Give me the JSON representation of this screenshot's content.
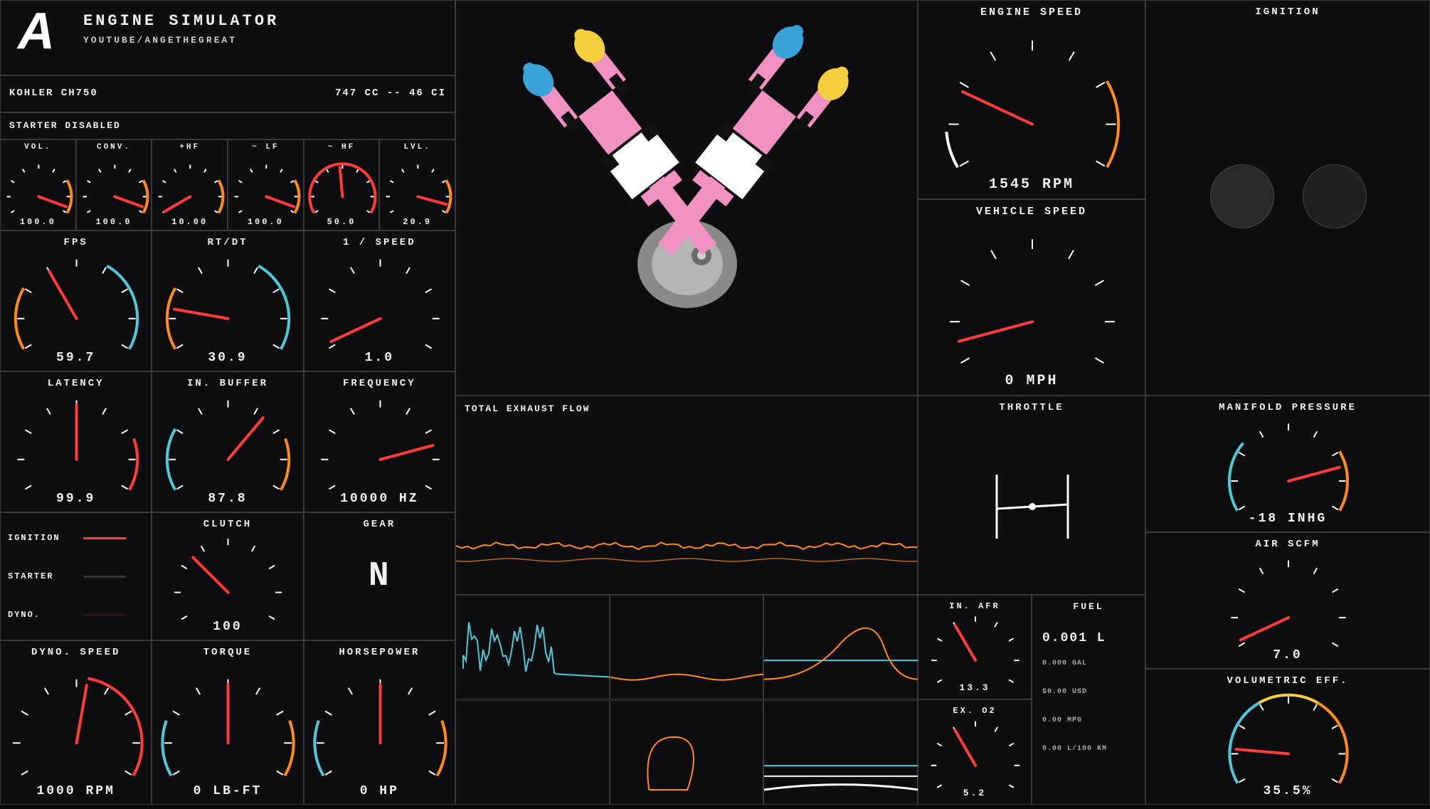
{
  "colors": {
    "bg": "#0e0e10",
    "border": "#3a3a3a",
    "text": "#f0f0f0",
    "needle": "#ff3b3b",
    "tick": "#ffffff",
    "orange": "#ff8c1a",
    "cyan": "#4fc8d8",
    "yellow": "#f4d03f",
    "pink": "#f191c1",
    "blue": "#3aa3d8",
    "grey": "#9a9a9a"
  },
  "header": {
    "logo": "A",
    "title": "ENGINE SIMULATOR",
    "subtitle": "YOUTUBE/ANGETHEGREAT"
  },
  "engine_info": {
    "name": "KOHLER CH750",
    "displacement": "747 CC -- 46 CI"
  },
  "starter_status": "STARTER DISABLED",
  "mini_gauges": [
    {
      "label": "VOL.",
      "value": "100.0",
      "angle": 200,
      "accent_start": 150,
      "accent_end": 210,
      "accent_color": "#ff8c1a"
    },
    {
      "label": "CONV.",
      "value": "100.0",
      "angle": 200,
      "accent_start": 150,
      "accent_end": 210,
      "accent_color": "#ff8c1a"
    },
    {
      "label": "+HF",
      "value": "10.00",
      "angle": -30,
      "accent_start": 150,
      "accent_end": 210,
      "accent_color": "#ff8c1a"
    },
    {
      "label": "~ LF",
      "value": "100.0",
      "angle": 200,
      "accent_start": 150,
      "accent_end": 210,
      "accent_color": "#ff8c1a"
    },
    {
      "label": "~ HF",
      "value": "50.0",
      "angle": 85,
      "accent_start": -30,
      "accent_end": 210,
      "accent_color": "#ff3b3b"
    },
    {
      "label": "LVL.",
      "value": "20.9",
      "angle": 195,
      "accent_start": 150,
      "accent_end": 210,
      "accent_color": "#ff8c1a"
    }
  ],
  "gauges_row2": [
    {
      "label": "FPS",
      "value": "59.7",
      "angle": 60,
      "accents": [
        {
          "s": -30,
          "e": 30,
          "c": "#ff8c1a"
        },
        {
          "s": 120,
          "e": 210,
          "c": "#4fc8d8"
        }
      ]
    },
    {
      "label": "RT/DT",
      "value": "30.9",
      "angle": 10,
      "accents": [
        {
          "s": -30,
          "e": 30,
          "c": "#ff8c1a"
        },
        {
          "s": 120,
          "e": 210,
          "c": "#4fc8d8"
        }
      ]
    },
    {
      "label": "1 / SPEED",
      "value": "1.0",
      "angle": -25,
      "accents": []
    }
  ],
  "gauges_row3": [
    {
      "label": "LATENCY",
      "value": "99.9",
      "angle": 90,
      "accents": [
        {
          "s": 160,
          "e": 210,
          "c": "#ff3b3b"
        }
      ]
    },
    {
      "label": "IN. BUFFER",
      "value": "87.8",
      "angle": 130,
      "accents": [
        {
          "s": -30,
          "e": 30,
          "c": "#4fc8d8"
        },
        {
          "s": 160,
          "e": 210,
          "c": "#ff8c1a"
        }
      ]
    },
    {
      "label": "FREQUENCY",
      "value": "10000 HZ",
      "angle": 165,
      "accents": []
    }
  ],
  "toggles": [
    {
      "label": "IGNITION",
      "color": "#ff3b3b"
    },
    {
      "label": "STARTER",
      "color": "#333333"
    },
    {
      "label": "DYNO.",
      "color": "#331111"
    }
  ],
  "clutch": {
    "label": "CLUTCH",
    "value": "100",
    "angle": 45
  },
  "gear": {
    "label": "GEAR",
    "value": "N"
  },
  "gauges_row5": [
    {
      "label": "DYNO. SPEED",
      "value": "1000 RPM",
      "angle": 100,
      "accents": [
        {
          "s": 100,
          "e": 210,
          "c": "#ff3b3b"
        }
      ]
    },
    {
      "label": "TORQUE",
      "value": "0 LB-FT",
      "angle": 90,
      "accents": [
        {
          "s": -30,
          "e": 20,
          "c": "#4fc8d8"
        },
        {
          "s": 160,
          "e": 210,
          "c": "#ff8c1a"
        }
      ]
    },
    {
      "label": "HORSEPOWER",
      "value": "0 HP",
      "angle": 90,
      "accents": [
        {
          "s": -30,
          "e": 20,
          "c": "#4fc8d8"
        },
        {
          "s": 160,
          "e": 210,
          "c": "#ff8c1a"
        }
      ]
    }
  ],
  "engine_speed": {
    "label": "ENGINE SPEED",
    "value": "1545 RPM",
    "angle": 25,
    "accents": [
      {
        "s": -30,
        "e": -5,
        "c": "#ffffff"
      },
      {
        "s": 150,
        "e": 210,
        "c": "#ff8c1a"
      }
    ]
  },
  "vehicle_speed": {
    "label": "VEHICLE SPEED",
    "value": "0 MPH",
    "angle": -15,
    "accents": []
  },
  "ignition_panel": {
    "label": "IGNITION"
  },
  "throttle": {
    "label": "THROTTLE"
  },
  "exhaust": {
    "label": "TOTAL EXHAUST FLOW"
  },
  "in_afr": {
    "label": "IN. AFR",
    "value": "13.3",
    "angle": 60
  },
  "ex_o2": {
    "label": "EX. O2",
    "value": "5.2",
    "angle": 60
  },
  "fuel": {
    "label": "FUEL",
    "liters": "0.001 L",
    "lines": [
      "0.000 GAL",
      "$0.00 USD",
      "0.00 MPG",
      "0.00 L/100 KM"
    ]
  },
  "manifold": {
    "label": "MANIFOLD PRESSURE",
    "value": "-18 INHG",
    "angle": 165,
    "accents": [
      {
        "s": -30,
        "e": 40,
        "c": "#4fc8d8"
      },
      {
        "s": 150,
        "e": 210,
        "c": "#ff8c1a"
      }
    ]
  },
  "air_scfm": {
    "label": "AIR SCFM",
    "value": "7.0",
    "angle": -25,
    "accents": []
  },
  "volumetric": {
    "label": "VOLUMETRIC EFF.",
    "value": "35.5%",
    "angle": 5,
    "accents": [
      {
        "s": -30,
        "e": 60,
        "c": "#4fc8d8"
      },
      {
        "s": 60,
        "e": 120,
        "c": "#f4d03f"
      },
      {
        "s": 120,
        "e": 210,
        "c": "#ff8c1a"
      }
    ]
  },
  "gauge_geom": {
    "start_angle": -30,
    "end_angle": 210,
    "tick_count": 9
  },
  "waveforms": {
    "exhaust": {
      "color1": "#ff8c1a",
      "color2": "#4fc8d8"
    },
    "small": [
      {
        "color": "#4fc8d8",
        "shape": "noise"
      },
      {
        "color": "#ff8c1a",
        "shape": "low"
      },
      {
        "color": "#ff8c1a",
        "shape": "hump",
        "color2": "#4fc8d8"
      },
      {
        "color": "#ff8c1a",
        "shape": "loop"
      },
      {
        "color": "#ffffff",
        "shape": "flat2",
        "color2": "#4fc8d8"
      }
    ]
  }
}
